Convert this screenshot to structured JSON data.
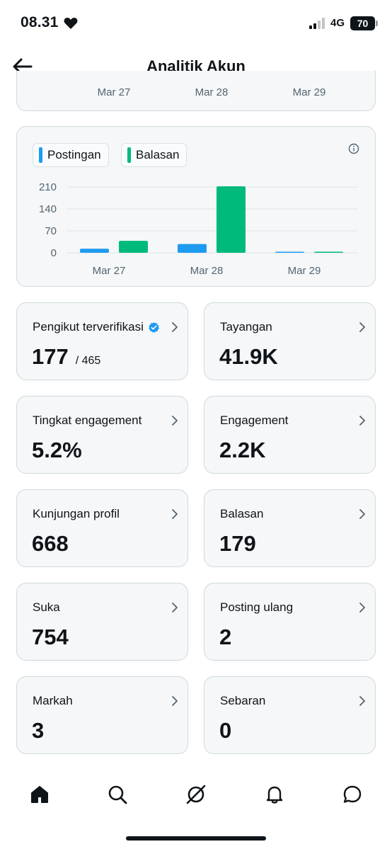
{
  "status_bar": {
    "time": "08.31",
    "network": "4G",
    "battery": "70",
    "icons": [
      "heart-icon",
      "signal-icon"
    ]
  },
  "header": {
    "title": "Analitik Akun",
    "back_icon": "arrow-left-icon"
  },
  "top_chart_stub": {
    "labels": [
      "Mar 27",
      "Mar 28",
      "Mar 29"
    ]
  },
  "legend": {
    "posts_label": "Postingan",
    "replies_label": "Balasan"
  },
  "colors": {
    "posts": "#1d9bf0",
    "replies": "#00ba7c",
    "card_bg": "#f5f7f8",
    "card_border": "#cfd9de"
  },
  "chart_data": {
    "type": "bar",
    "categories": [
      "Mar 27",
      "Mar 28",
      "Mar 29"
    ],
    "series": [
      {
        "name": "Postingan",
        "values": [
          13,
          28,
          1
        ]
      },
      {
        "name": "Balasan",
        "values": [
          38,
          212,
          1
        ]
      }
    ],
    "yticks": [
      "210",
      "140",
      "70",
      "0"
    ],
    "ylim": [
      0,
      210
    ],
    "grid": true,
    "legend": "top-left"
  },
  "metrics": [
    {
      "label": "Pengikut terverifikasi",
      "value": "177",
      "sub": "/ 465",
      "verified": true
    },
    {
      "label": "Tayangan",
      "value": "41.9K"
    },
    {
      "label": "Tingkat engagement",
      "value": "5.2%"
    },
    {
      "label": "Engagement",
      "value": "2.2K"
    },
    {
      "label": "Kunjungan profil",
      "value": "668"
    },
    {
      "label": "Balasan",
      "value": "179"
    },
    {
      "label": "Suka",
      "value": "754"
    },
    {
      "label": "Posting ulang",
      "value": "2"
    },
    {
      "label": "Markah",
      "value": "3"
    },
    {
      "label": "Sebaran",
      "value": "0"
    }
  ],
  "nav": {
    "items": [
      "home-icon",
      "search-icon",
      "grok-icon",
      "notifications-icon",
      "messages-icon"
    ]
  }
}
